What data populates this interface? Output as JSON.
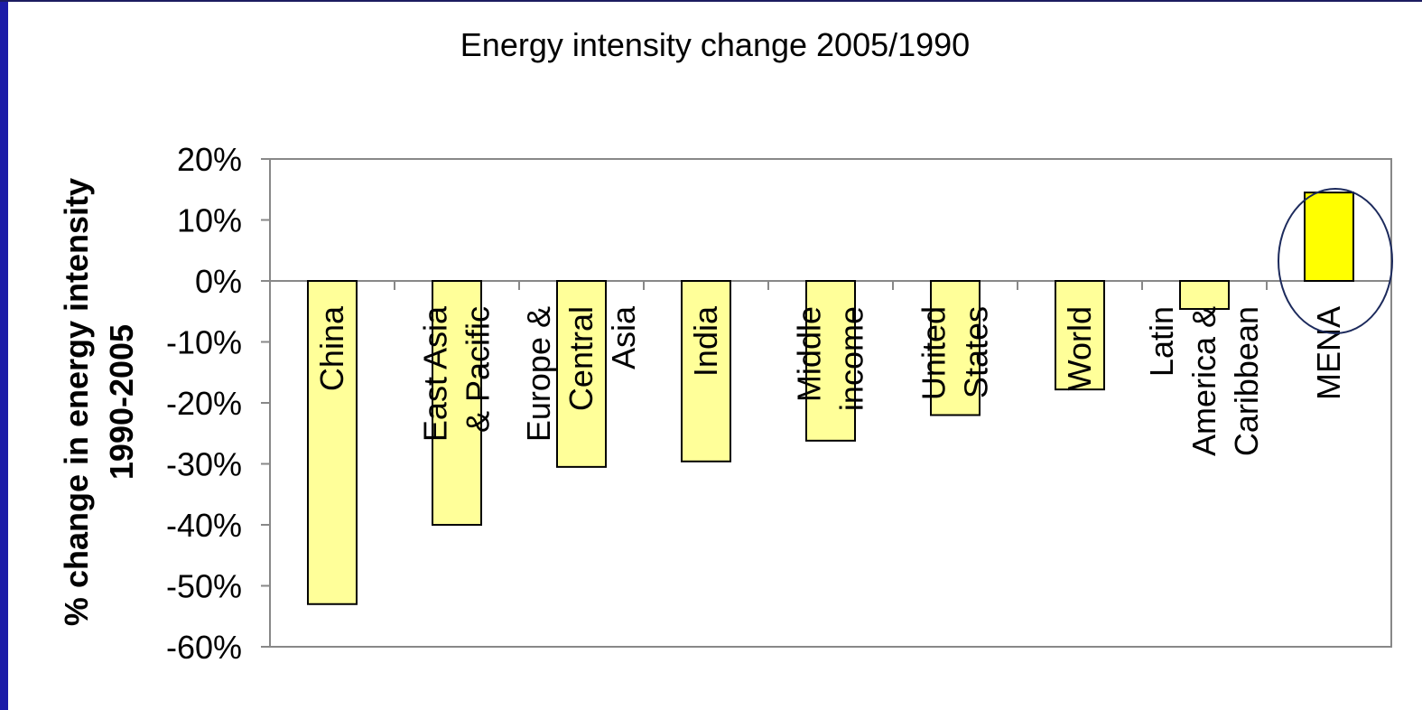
{
  "chart_data": {
    "type": "bar",
    "title": "Energy intensity change 2005/1990",
    "y_label": [
      "% change in energy intensity",
      "1990-2005"
    ],
    "categories": [
      [
        "China"
      ],
      [
        "East Asia",
        "& Pacific"
      ],
      [
        "Europe &",
        "Central",
        "Asia"
      ],
      [
        "India"
      ],
      [
        "Middle",
        "income"
      ],
      [
        "United",
        "States"
      ],
      [
        "World"
      ],
      [
        "Latin",
        "America &",
        "Caribbean"
      ],
      [
        "MENA"
      ]
    ],
    "values": [
      -53,
      -40,
      -30.5,
      -29.6,
      -26.2,
      -22,
      -17.8,
      -4.6,
      14.5
    ],
    "colors": [
      "#ffff99",
      "#ffff99",
      "#ffff99",
      "#ffff99",
      "#ffff99",
      "#ffff99",
      "#ffff99",
      "#ffff99",
      "#ffff00"
    ],
    "ylim": [
      -60,
      20
    ],
    "yticks": [
      {
        "value": -60,
        "label": "-60%"
      },
      {
        "value": -50,
        "label": "-50%"
      },
      {
        "value": -40,
        "label": "-40%"
      },
      {
        "value": -30,
        "label": "-30%"
      },
      {
        "value": -20,
        "label": "-20%"
      },
      {
        "value": -10,
        "label": "-10%"
      },
      {
        "value": 0,
        "label": "0%"
      },
      {
        "value": 10,
        "label": "10%"
      },
      {
        "value": 20,
        "label": "20%"
      }
    ]
  }
}
